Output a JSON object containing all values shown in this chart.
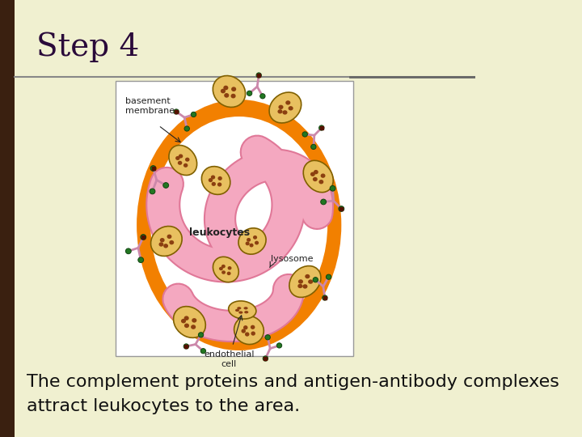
{
  "title": "Step 4",
  "body_text_line1": "The complement proteins and antigen-antibody complexes",
  "body_text_line2": "attract leukocytes to the area.",
  "bg_color": "#f0f0d0",
  "left_bar_color": "#3a2010",
  "title_color": "#2a0a3a",
  "body_text_color": "#111111",
  "title_fontsize": 28,
  "body_fontsize": 16,
  "orange_ring_color": "#f28000",
  "pink_cell_color": "#f4a8c0",
  "pink_cell_edge": "#e07898",
  "lysosome_fill": "#e8c060",
  "lysosome_edge": "#806000",
  "lysosome_spot": "#8b4010",
  "ab_stem_color": "#cc88aa",
  "ab_head_color": "#227722",
  "ab_dot_color": "#551100",
  "label_color": "#222222",
  "white": "#ffffff",
  "gray_line": "#888888",
  "img_box_edge": "#999999"
}
